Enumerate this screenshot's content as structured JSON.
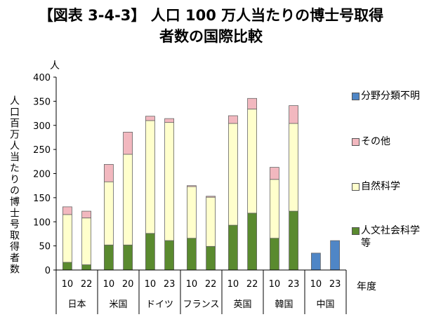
{
  "title_line1": "【図表 3-4-3】 人口 100 万人当たりの博士号取得",
  "title_line2": "者数の国際比較",
  "y_unit": "人",
  "y_label": "人口百万人当たりの博士号取得者数",
  "x_title": "年度",
  "chart_data": {
    "type": "bar",
    "stacked": true,
    "ylim": [
      0,
      400
    ],
    "yticks": [
      0,
      50,
      100,
      150,
      200,
      250,
      300,
      350,
      400
    ],
    "grid": false,
    "legend_position": "right",
    "groups": [
      {
        "label": "日本",
        "years": [
          "10",
          "22"
        ]
      },
      {
        "label": "米国",
        "years": [
          "10",
          "20"
        ]
      },
      {
        "label": "ドイツ",
        "years": [
          "10",
          "23"
        ]
      },
      {
        "label": "フランス",
        "years": [
          "10",
          "22"
        ]
      },
      {
        "label": "英国",
        "years": [
          "10",
          "22"
        ]
      },
      {
        "label": "韓国",
        "years": [
          "10",
          "23"
        ]
      },
      {
        "label": "中国",
        "years": [
          "10",
          "23"
        ]
      }
    ],
    "series": [
      {
        "name": "人文社会科学等",
        "color": "#5a8a2f",
        "values": [
          16,
          11,
          52,
          52,
          76,
          61,
          66,
          49,
          93,
          118,
          66,
          122,
          0,
          0
        ]
      },
      {
        "name": "自然科学",
        "color": "#ffffcc",
        "values": [
          99,
          97,
          131,
          188,
          234,
          245,
          107,
          102,
          211,
          216,
          122,
          182,
          0,
          0
        ]
      },
      {
        "name": "その他",
        "color": "#f2b8bf",
        "values": [
          16,
          14,
          36,
          46,
          9,
          8,
          2,
          2,
          16,
          22,
          25,
          37,
          0,
          0
        ]
      },
      {
        "name": "分野分類不明",
        "color": "#4f86c6",
        "values": [
          0,
          0,
          0,
          0,
          0,
          0,
          0,
          0,
          0,
          0,
          0,
          0,
          35,
          61
        ]
      }
    ]
  },
  "legend": [
    {
      "label": "分野分類不明",
      "color": "#4f86c6"
    },
    {
      "label": "その他",
      "color": "#f2b8bf"
    },
    {
      "label": "自然科学",
      "color": "#ffffcc"
    },
    {
      "label": "人文社会科学等",
      "color": "#5a8a2f"
    }
  ]
}
